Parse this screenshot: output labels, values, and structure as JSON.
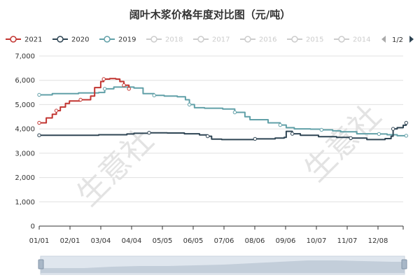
{
  "chart_data": {
    "type": "line",
    "title": "阔叶木浆价格年度对比图（元/吨）",
    "xlabel": "",
    "ylabel": "",
    "ylim": [
      0,
      7000
    ],
    "yticks": [
      0,
      1000,
      2000,
      3000,
      4000,
      5000,
      6000,
      7000
    ],
    "ytick_labels": [
      "0",
      "1,000",
      "2,000",
      "3,000",
      "4,000",
      "5,000",
      "6,000",
      "7,000"
    ],
    "xlim": [
      1,
      362
    ],
    "xtick_labels": [
      "01/01",
      "02/01",
      "03/04",
      "04/04",
      "05/05",
      "06/05",
      "07/06",
      "08/06",
      "09/06",
      "10/07",
      "11/07",
      "12/08"
    ],
    "grid": true,
    "legend_position": "top",
    "legend": {
      "items": [
        {
          "label": "2021",
          "color": "#c23531",
          "active": true
        },
        {
          "label": "2020",
          "color": "#2f4554",
          "active": true
        },
        {
          "label": "2019",
          "color": "#61a0a8",
          "active": true
        },
        {
          "label": "2018",
          "color": "#cccccc",
          "active": false
        },
        {
          "label": "2017",
          "color": "#cccccc",
          "active": false
        },
        {
          "label": "2016",
          "color": "#cccccc",
          "active": false
        },
        {
          "label": "2015",
          "color": "#cccccc",
          "active": false
        },
        {
          "label": "2014",
          "color": "#cccccc",
          "active": false
        }
      ],
      "page": "1/2"
    },
    "watermark": "生意社",
    "series": [
      {
        "name": "2021",
        "color": "#c23531",
        "points": [
          [
            1,
            4250
          ],
          [
            4,
            4250
          ],
          [
            8,
            4450
          ],
          [
            14,
            4600
          ],
          [
            18,
            4750
          ],
          [
            22,
            4900
          ],
          [
            27,
            5050
          ],
          [
            31,
            5150
          ],
          [
            42,
            5200
          ],
          [
            52,
            5350
          ],
          [
            56,
            5700
          ],
          [
            62,
            5950
          ],
          [
            65,
            6050
          ],
          [
            71,
            6070
          ],
          [
            77,
            6050
          ],
          [
            81,
            5950
          ],
          [
            85,
            5800
          ],
          [
            90,
            5650
          ]
        ]
      },
      {
        "name": "2020",
        "color": "#2f4554",
        "points": [
          [
            1,
            3740
          ],
          [
            60,
            3760
          ],
          [
            88,
            3790
          ],
          [
            95,
            3820
          ],
          [
            110,
            3840
          ],
          [
            128,
            3830
          ],
          [
            145,
            3800
          ],
          [
            160,
            3750
          ],
          [
            168,
            3700
          ],
          [
            172,
            3580
          ],
          [
            182,
            3560
          ],
          [
            200,
            3560
          ],
          [
            215,
            3590
          ],
          [
            235,
            3620
          ],
          [
            244,
            3650
          ],
          [
            246,
            3900
          ],
          [
            252,
            3800
          ],
          [
            260,
            3740
          ],
          [
            278,
            3680
          ],
          [
            296,
            3650
          ],
          [
            310,
            3620
          ],
          [
            326,
            3560
          ],
          [
            344,
            3600
          ],
          [
            350,
            3700
          ],
          [
            352,
            4000
          ],
          [
            356,
            4050
          ],
          [
            362,
            4150
          ],
          [
            365,
            4250
          ]
        ]
      },
      {
        "name": "2019",
        "color": "#61a0a8",
        "points": [
          [
            1,
            5400
          ],
          [
            14,
            5450
          ],
          [
            40,
            5480
          ],
          [
            60,
            5500
          ],
          [
            66,
            5650
          ],
          [
            75,
            5720
          ],
          [
            95,
            5680
          ],
          [
            104,
            5450
          ],
          [
            115,
            5380
          ],
          [
            125,
            5350
          ],
          [
            138,
            5320
          ],
          [
            146,
            5200
          ],
          [
            150,
            5000
          ],
          [
            155,
            4870
          ],
          [
            165,
            4850
          ],
          [
            183,
            4820
          ],
          [
            195,
            4680
          ],
          [
            205,
            4500
          ],
          [
            210,
            4380
          ],
          [
            228,
            4250
          ],
          [
            240,
            4160
          ],
          [
            246,
            4050
          ],
          [
            254,
            4000
          ],
          [
            270,
            3990
          ],
          [
            281,
            3960
          ],
          [
            292,
            3920
          ],
          [
            300,
            3880
          ],
          [
            316,
            3800
          ],
          [
            338,
            3790
          ],
          [
            346,
            3760
          ],
          [
            356,
            3720
          ],
          [
            365,
            3720
          ]
        ]
      }
    ]
  }
}
